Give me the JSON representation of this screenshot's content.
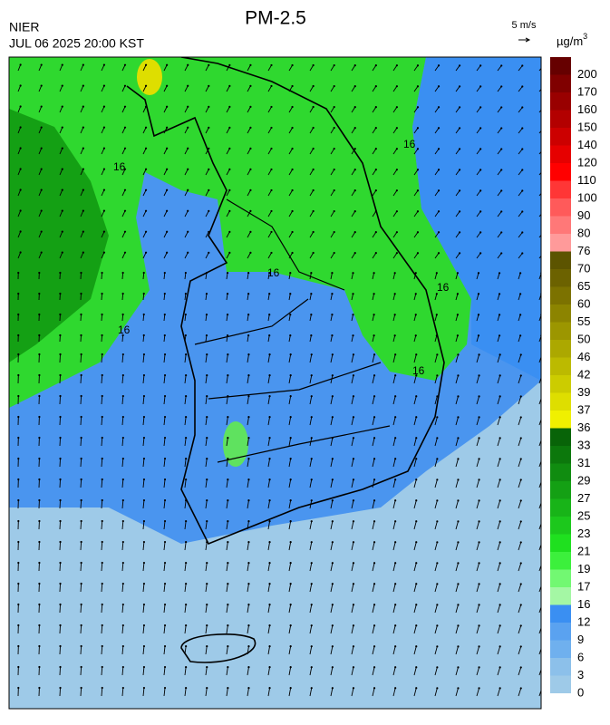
{
  "header": {
    "title": "PM-2.5",
    "agency": "NIER",
    "time": "JUL 06 2025 20:00 KST"
  },
  "wind_scale": {
    "label": "5 m/s"
  },
  "colorbar": {
    "unit": "µg/m",
    "unit_power": "3",
    "levels": [
      {
        "label": 0,
        "color": "#9ecae8"
      },
      {
        "label": 3,
        "color": "#8cc0ea"
      },
      {
        "label": 6,
        "color": "#6fb0ee"
      },
      {
        "label": 9,
        "color": "#5aa2f0"
      },
      {
        "label": 12,
        "color": "#3a8ff2"
      },
      {
        "label": 16,
        "color": "#a4f7a4"
      },
      {
        "label": 17,
        "color": "#72f872"
      },
      {
        "label": 19,
        "color": "#3cf03c"
      },
      {
        "label": 21,
        "color": "#1fe01f"
      },
      {
        "label": 23,
        "color": "#1cc81c"
      },
      {
        "label": 25,
        "color": "#18b418"
      },
      {
        "label": 27,
        "color": "#14a014"
      },
      {
        "label": 29,
        "color": "#108c10"
      },
      {
        "label": 31,
        "color": "#0c780c"
      },
      {
        "label": 33,
        "color": "#086408"
      },
      {
        "label": 36,
        "color": "#f0f000"
      },
      {
        "label": 37,
        "color": "#dede00"
      },
      {
        "label": 39,
        "color": "#cccc00"
      },
      {
        "label": 42,
        "color": "#bcba00"
      },
      {
        "label": 46,
        "color": "#aca800"
      },
      {
        "label": 50,
        "color": "#9c9600"
      },
      {
        "label": 55,
        "color": "#8c8400"
      },
      {
        "label": 60,
        "color": "#7c7200"
      },
      {
        "label": 65,
        "color": "#6c6200"
      },
      {
        "label": 70,
        "color": "#5c5400"
      },
      {
        "label": 76,
        "color": "#ff9a9a"
      },
      {
        "label": 80,
        "color": "#ff7878"
      },
      {
        "label": 90,
        "color": "#ff5a5a"
      },
      {
        "label": 100,
        "color": "#ff3636"
      },
      {
        "label": 110,
        "color": "#ff0000"
      },
      {
        "label": 120,
        "color": "#e60000"
      },
      {
        "label": 140,
        "color": "#cc0000"
      },
      {
        "label": 150,
        "color": "#b30000"
      },
      {
        "label": 160,
        "color": "#990000"
      },
      {
        "label": 170,
        "color": "#800000"
      },
      {
        "label": 200,
        "color": "#660000"
      }
    ]
  },
  "map": {
    "contour_labels": [
      "16",
      "16",
      "16",
      "16",
      "16",
      "16"
    ]
  }
}
